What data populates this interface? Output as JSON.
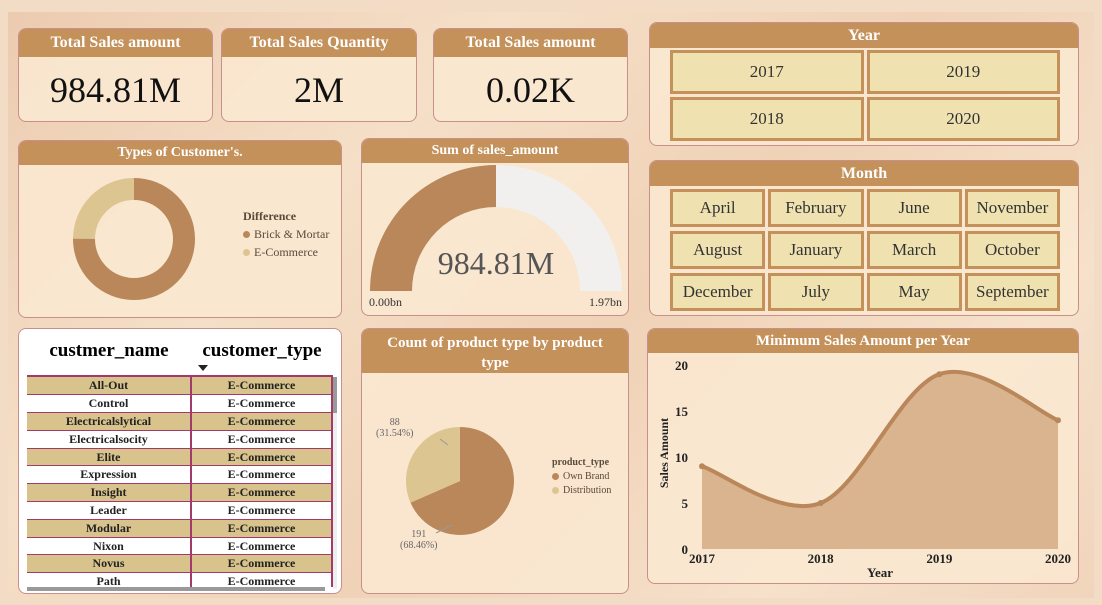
{
  "kpis": [
    {
      "title": "Total Sales amount",
      "value": "984.81M"
    },
    {
      "title": "Total Sales Quantity",
      "value": "2M"
    },
    {
      "title": "Total Sales amount",
      "value": "0.02K"
    }
  ],
  "year_slicer": {
    "title": "Year",
    "options": [
      "2017",
      "2019",
      "2018",
      "2020"
    ]
  },
  "month_slicer": {
    "title": "Month",
    "options": [
      "April",
      "February",
      "June",
      "November",
      "August",
      "January",
      "March",
      "October",
      "December",
      "July",
      "May",
      "September"
    ]
  },
  "customer_types": {
    "title": "Types of Customer's.",
    "legend_title": "Difference",
    "legend": [
      "Brick & Mortar",
      "E-Commerce"
    ],
    "colors": [
      "#b9875a",
      "#dcc590"
    ]
  },
  "gauge": {
    "title": "Sum of sales_amount",
    "value": "984.81M",
    "min_label": "0.00bn",
    "max_label": "1.97bn",
    "fraction": 0.5
  },
  "table": {
    "headers": [
      "custmer_name",
      "customer_type"
    ],
    "rows": [
      [
        "All-Out",
        "E-Commerce"
      ],
      [
        "Control",
        "E-Commerce"
      ],
      [
        "Electricalslytical",
        "E-Commerce"
      ],
      [
        "Electricalsocity",
        "E-Commerce"
      ],
      [
        "Elite",
        "E-Commerce"
      ],
      [
        "Expression",
        "E-Commerce"
      ],
      [
        "Insight",
        "E-Commerce"
      ],
      [
        "Leader",
        "E-Commerce"
      ],
      [
        "Modular",
        "E-Commerce"
      ],
      [
        "Nixon",
        "E-Commerce"
      ],
      [
        "Novus",
        "E-Commerce"
      ],
      [
        "Path",
        "E-Commerce"
      ]
    ]
  },
  "product_pie": {
    "title": "Count of product type by product type",
    "legend_title": "product_type",
    "legend": [
      "Own Brand",
      "Distribution"
    ],
    "labels": [
      {
        "count": "191",
        "pct": "(68.46%)"
      },
      {
        "count": "88",
        "pct": "(31.54%)"
      }
    ],
    "colors": [
      "#b9875a",
      "#dcc590"
    ]
  },
  "chart_data": {
    "type": "area",
    "title": "Minimum Sales Amount per Year",
    "xlabel": "Year",
    "ylabel": "Sales Amount",
    "x": [
      "2017",
      "2018",
      "2019",
      "2020"
    ],
    "values": [
      9,
      5,
      19,
      14
    ],
    "ylim": [
      0,
      20
    ],
    "yticks": [
      "0",
      "5",
      "10",
      "15",
      "20"
    ],
    "line_color": "#b9875a",
    "fill_color": "#d2aa82"
  }
}
